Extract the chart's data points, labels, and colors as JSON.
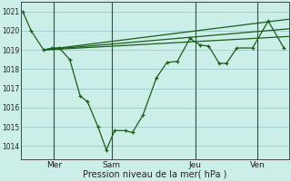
{
  "background_color": "#cceee8",
  "grid_color": "#99cccc",
  "line_color": "#1a5c1a",
  "xlabel_text": "Pression niveau de la mer( hPa )",
  "xtick_labels": [
    "Mer",
    "Sam",
    "Jeu",
    "Ven"
  ],
  "ytick_labels": [
    1014,
    1015,
    1016,
    1017,
    1018,
    1019,
    1020,
    1021
  ],
  "ylim": [
    1013.3,
    1021.5
  ],
  "xlim": [
    -0.2,
    25.5
  ],
  "main_x": [
    0,
    0.8,
    2.0,
    2.8,
    3.5,
    4.5,
    5.5,
    6.2,
    7.2,
    8.0,
    8.8,
    9.8,
    10.5,
    11.5,
    12.8,
    13.8,
    14.8,
    16.0,
    17.0,
    17.8,
    18.8,
    19.5,
    20.5,
    22.0,
    23.5,
    25.0
  ],
  "main_y": [
    1021.0,
    1020.0,
    1019.0,
    1019.1,
    1019.1,
    1018.5,
    1016.6,
    1016.3,
    1015.0,
    1013.8,
    1014.8,
    1014.8,
    1014.7,
    1015.6,
    1017.55,
    1018.35,
    1018.4,
    1019.6,
    1019.25,
    1019.2,
    1018.3,
    1018.3,
    1019.1,
    1019.1,
    1020.5,
    1019.1
  ],
  "forecast_lines": [
    {
      "x": [
        2.0,
        25.5
      ],
      "y": [
        1019.0,
        1020.6
      ]
    },
    {
      "x": [
        2.0,
        25.5
      ],
      "y": [
        1019.0,
        1020.1
      ]
    },
    {
      "x": [
        2.0,
        25.5
      ],
      "y": [
        1019.0,
        1019.7
      ]
    }
  ],
  "xtick_x": [
    3.0,
    8.5,
    16.5,
    22.5
  ],
  "vline_x": [
    3.0,
    8.5,
    16.5,
    22.5
  ]
}
